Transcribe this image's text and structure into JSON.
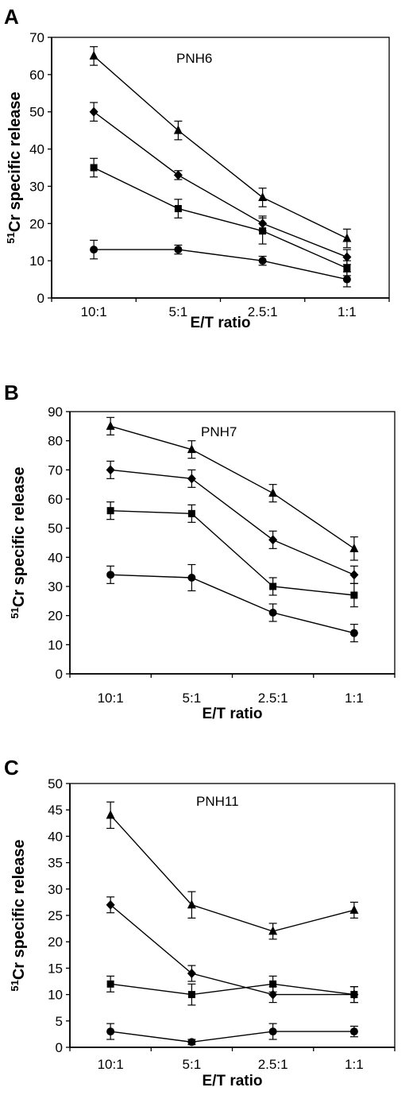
{
  "chart_data": [
    {
      "type": "line",
      "panel_label": "A",
      "title": "PNH6",
      "xlabel": "E/T ratio",
      "ylabel_sup": "51",
      "ylabel": "Cr specific release",
      "categories": [
        "10:1",
        "5:1",
        "2.5:1",
        "1:1"
      ],
      "ylim": [
        0,
        70
      ],
      "yticks": [
        0,
        10,
        20,
        30,
        40,
        50,
        60,
        70
      ],
      "grid": false,
      "series": [
        {
          "marker": "triangle",
          "values": [
            65,
            45,
            27,
            16
          ],
          "errors": [
            2.5,
            2.5,
            2.5,
            2.5
          ]
        },
        {
          "marker": "diamond",
          "values": [
            50,
            33,
            20,
            11
          ],
          "errors": [
            2.5,
            1.2,
            2,
            2
          ]
        },
        {
          "marker": "square",
          "values": [
            35,
            24,
            18,
            8
          ],
          "errors": [
            2.5,
            2.5,
            3.5,
            2
          ]
        },
        {
          "marker": "circle",
          "values": [
            13,
            13,
            10,
            5
          ],
          "errors": [
            2.5,
            1.2,
            1.2,
            2
          ]
        }
      ]
    },
    {
      "type": "line",
      "panel_label": "B",
      "title": "PNH7",
      "xlabel": "E/T ratio",
      "ylabel_sup": "51",
      "ylabel": "Cr specific release",
      "categories": [
        "10:1",
        "5:1",
        "2.5:1",
        "1:1"
      ],
      "ylim": [
        0,
        90
      ],
      "yticks": [
        0,
        10,
        20,
        30,
        40,
        50,
        60,
        70,
        80,
        90
      ],
      "grid": false,
      "series": [
        {
          "marker": "triangle",
          "values": [
            85,
            77,
            62,
            43
          ],
          "errors": [
            3,
            3,
            3,
            4
          ]
        },
        {
          "marker": "diamond",
          "values": [
            70,
            67,
            46,
            34
          ],
          "errors": [
            3,
            3,
            3,
            3
          ]
        },
        {
          "marker": "square",
          "values": [
            56,
            55,
            30,
            27
          ],
          "errors": [
            3,
            3,
            3,
            4
          ]
        },
        {
          "marker": "circle",
          "values": [
            34,
            33,
            21,
            14
          ],
          "errors": [
            3,
            4.5,
            3,
            3
          ]
        }
      ]
    },
    {
      "type": "line",
      "panel_label": "C",
      "title": "PNH11",
      "xlabel": "E/T ratio",
      "ylabel_sup": "51",
      "ylabel": "Cr specific release",
      "categories": [
        "10:1",
        "5:1",
        "2.5:1",
        "1:1"
      ],
      "ylim": [
        0,
        50
      ],
      "yticks": [
        0,
        5,
        10,
        15,
        20,
        25,
        30,
        35,
        40,
        45,
        50
      ],
      "grid": false,
      "series": [
        {
          "marker": "triangle",
          "values": [
            44,
            27,
            22,
            26
          ],
          "errors": [
            2.5,
            2.5,
            1.5,
            1.5
          ]
        },
        {
          "marker": "diamond",
          "values": [
            27,
            14,
            10,
            10
          ],
          "errors": [
            1.5,
            1.5,
            1.5,
            1.5
          ]
        },
        {
          "marker": "square",
          "values": [
            12,
            10,
            12,
            10
          ],
          "errors": [
            1.5,
            2,
            1.5,
            1.5
          ]
        },
        {
          "marker": "circle",
          "values": [
            3,
            1,
            3,
            3
          ],
          "errors": [
            1.5,
            0.5,
            1.5,
            1
          ]
        }
      ]
    }
  ]
}
